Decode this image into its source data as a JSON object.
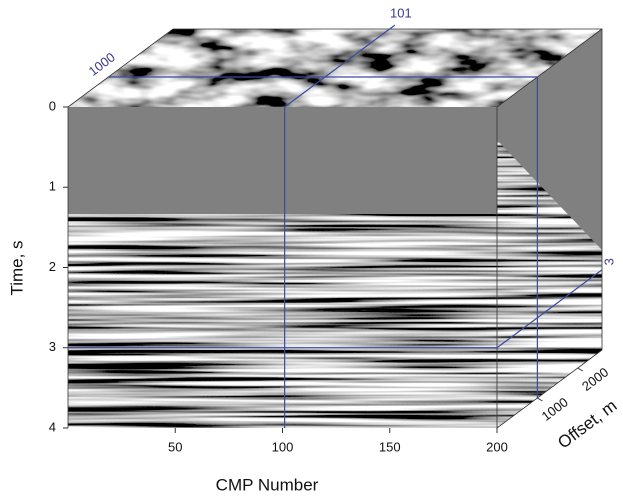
{
  "chart_data": {
    "type": "cube",
    "xlabel": "CMP Number",
    "ylabel": "Time, s",
    "zlabel": "Offset, m",
    "xlim": [
      0,
      200
    ],
    "xticks": [
      50,
      100,
      150,
      200
    ],
    "ylim": [
      0,
      4
    ],
    "yticks": [
      0,
      1,
      2,
      3,
      4
    ],
    "y_inverted": true,
    "zlim": [
      0,
      2600
    ],
    "zticks": [
      1000,
      2000
    ],
    "slices": {
      "cmp": 101,
      "time": 3,
      "offset": 1000
    },
    "slice_color": "#3b4aa0"
  }
}
